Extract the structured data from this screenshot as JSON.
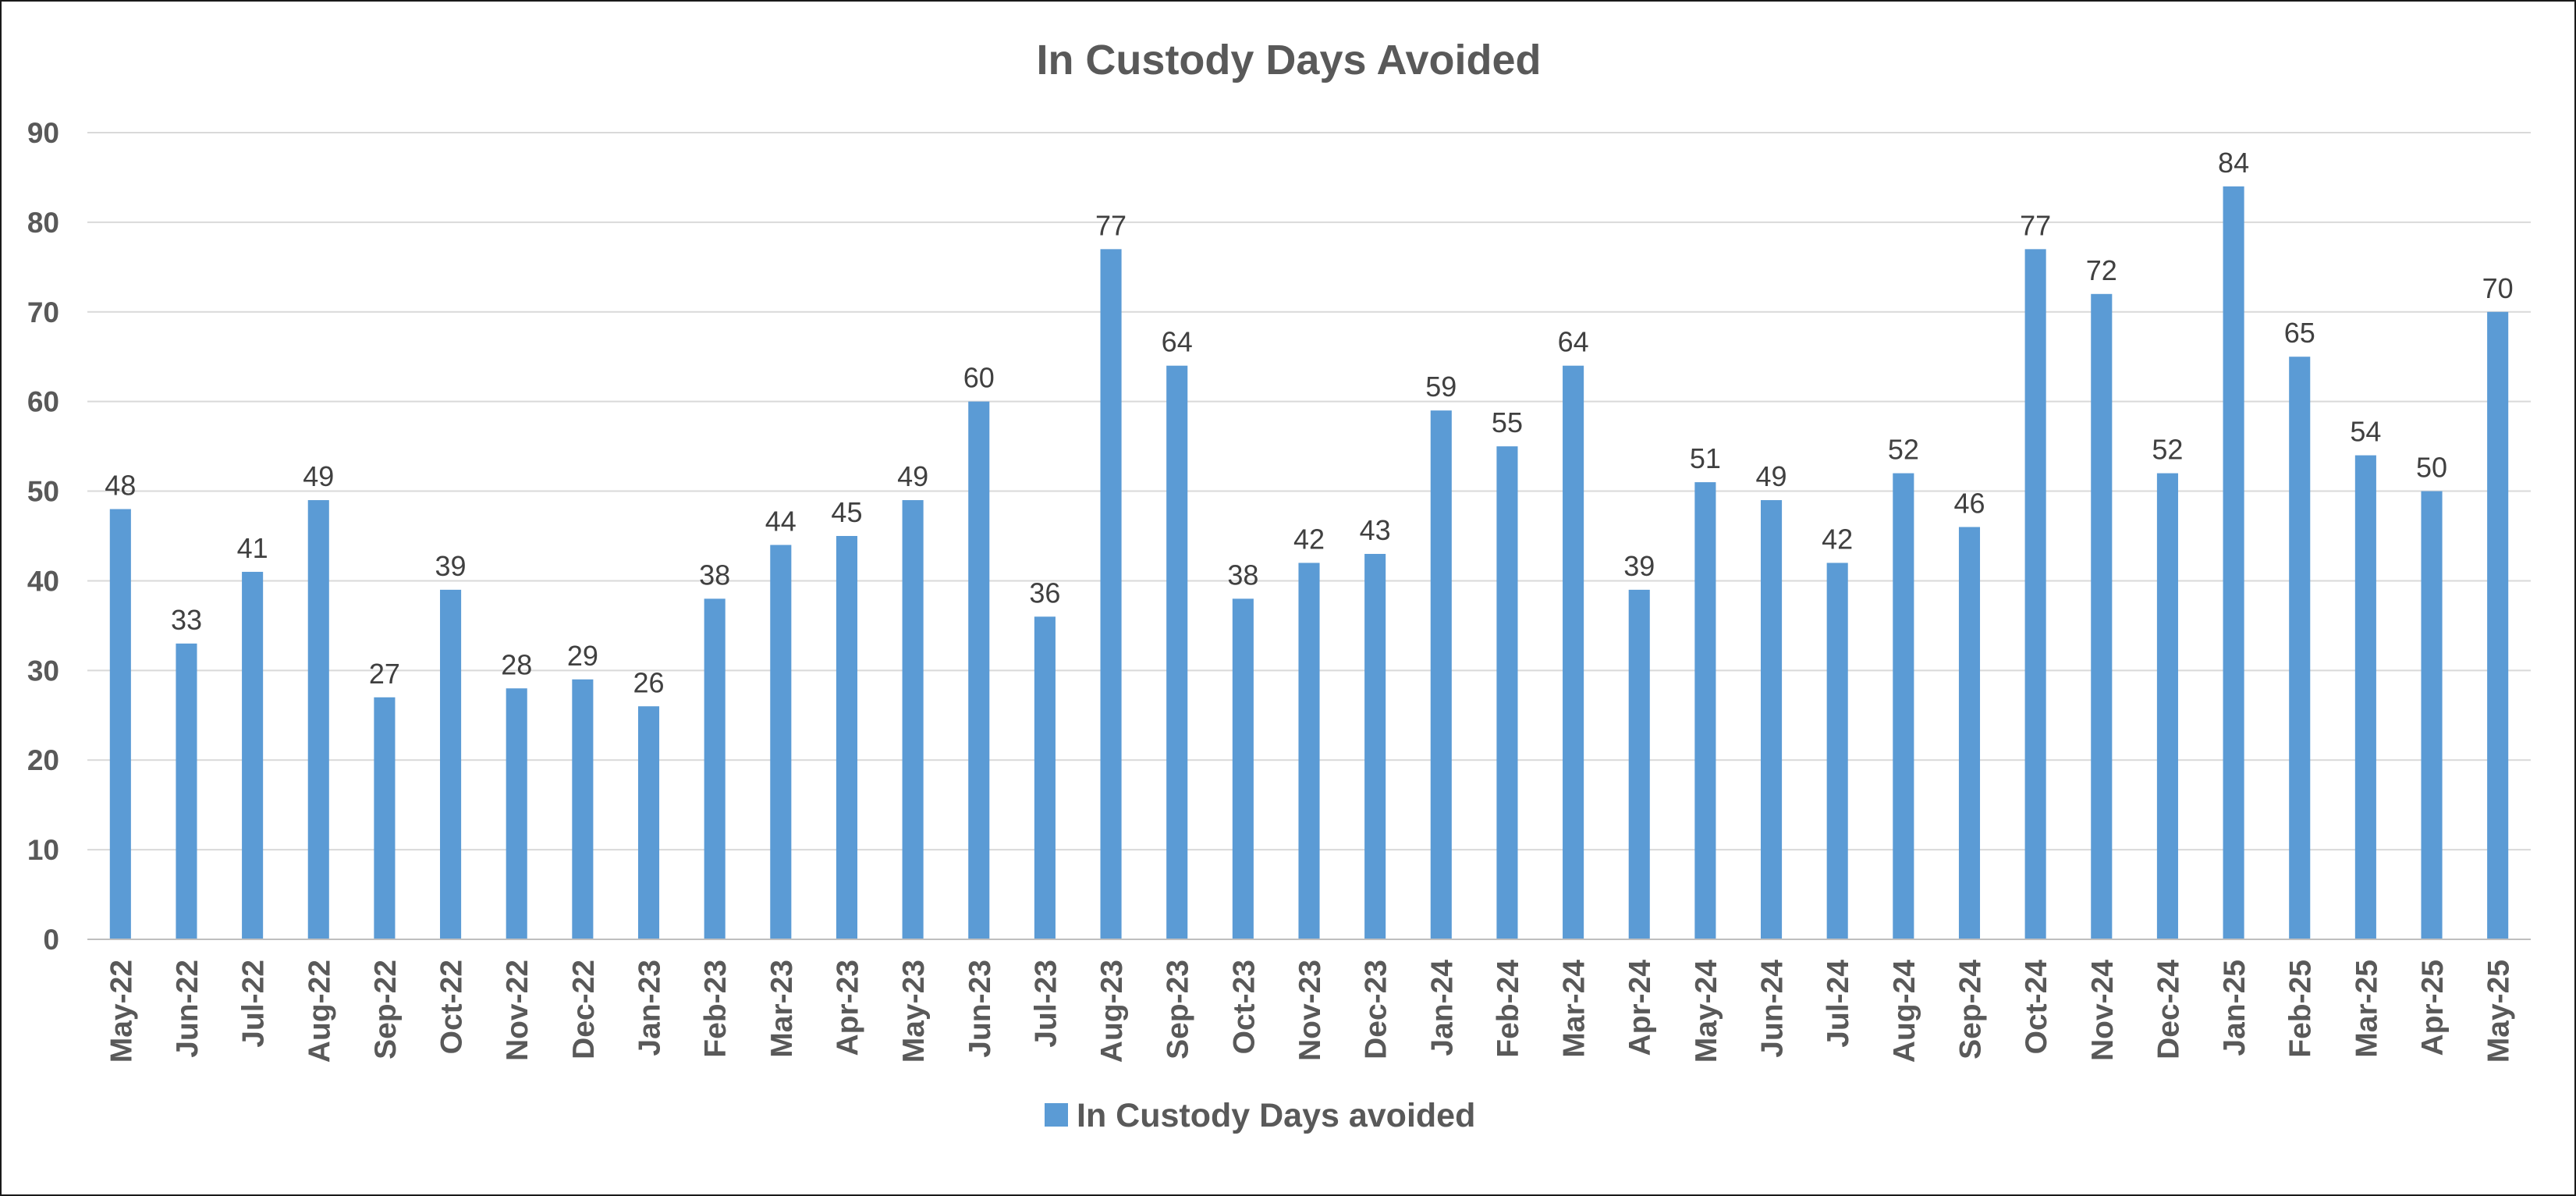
{
  "chart_data": {
    "type": "bar",
    "title": "In Custody Days Avoided",
    "xlabel": "",
    "ylabel": "",
    "ylim": [
      0,
      90
    ],
    "yticks": [
      0,
      10,
      20,
      30,
      40,
      50,
      60,
      70,
      80,
      90
    ],
    "grid": true,
    "legend_position": "bottom",
    "categories": [
      "May-22",
      "Jun-22",
      "Jul-22",
      "Aug-22",
      "Sep-22",
      "Oct-22",
      "Nov-22",
      "Dec-22",
      "Jan-23",
      "Feb-23",
      "Mar-23",
      "Apr-23",
      "May-23",
      "Jun-23",
      "Jul-23",
      "Aug-23",
      "Sep-23",
      "Oct-23",
      "Nov-23",
      "Dec-23",
      "Jan-24",
      "Feb-24",
      "Mar-24",
      "Apr-24",
      "May-24",
      "Jun-24",
      "Jul-24",
      "Aug-24",
      "Sep-24",
      "Oct-24",
      "Nov-24",
      "Dec-24",
      "Jan-25",
      "Feb-25",
      "Mar-25",
      "Apr-25",
      "May-25"
    ],
    "series": [
      {
        "name": "In Custody Days avoided",
        "color": "#5B9BD5",
        "values": [
          48,
          33,
          41,
          49,
          27,
          39,
          28,
          29,
          26,
          38,
          44,
          45,
          49,
          60,
          36,
          77,
          64,
          38,
          42,
          43,
          59,
          55,
          64,
          39,
          51,
          49,
          42,
          52,
          46,
          77,
          72,
          52,
          84,
          65,
          54,
          50,
          70
        ]
      }
    ],
    "colors": {
      "bar": "#5B9BD5",
      "grid": "#D9D9D9",
      "axis": "#BFBFBF",
      "text": "#595959",
      "data_label": "#404040"
    }
  }
}
